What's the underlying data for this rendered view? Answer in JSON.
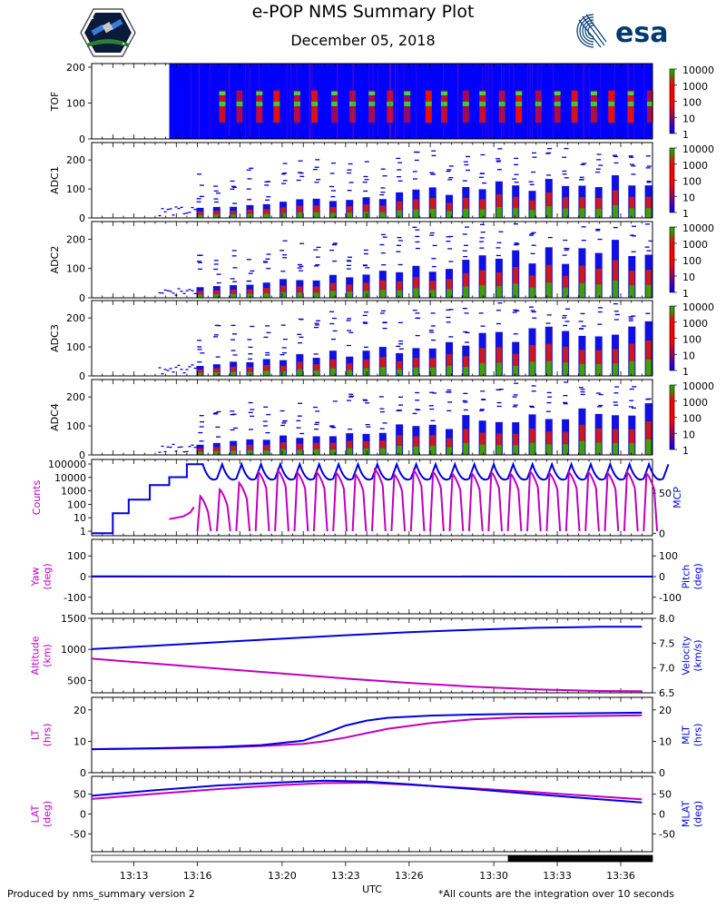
{
  "header": {
    "title": "e-POP NMS Summary Plot",
    "date": "December 05, 2018"
  },
  "logos": {
    "mission": "satellite-mission-badge",
    "esa": "esa"
  },
  "footer": {
    "left": "Produced by nms_summary version 2",
    "right": "*All counts are the integration over 10 seconds"
  },
  "colors": {
    "magenta": "#c000c0",
    "blue": "#0000e0",
    "colorbar": [
      "#0000ff",
      "#ff0000",
      "#00c000"
    ]
  },
  "chart_data": [
    {
      "type": "heatmap",
      "ylabel": "TOF",
      "ylim": [
        0,
        210
      ],
      "yticks": [
        0,
        100,
        200
      ],
      "colorbar_ticks": [
        "10000",
        "1000",
        "100",
        "10",
        "1"
      ],
      "data_start_time": "13:14:40",
      "peak_bins": [
        60,
        100,
        130
      ]
    },
    {
      "type": "heatmap",
      "ylabel": "ADC1",
      "ylim": [
        0,
        260
      ],
      "yticks": [
        0,
        100,
        200
      ],
      "colorbar_ticks": [
        "10000",
        "1000",
        "100",
        "10",
        "1"
      ]
    },
    {
      "type": "heatmap",
      "ylabel": "ADC2",
      "ylim": [
        0,
        260
      ],
      "yticks": [
        0,
        100,
        200
      ],
      "colorbar_ticks": [
        "10000",
        "1000",
        "100",
        "10",
        "1"
      ]
    },
    {
      "type": "heatmap",
      "ylabel": "ADC3",
      "ylim": [
        0,
        260
      ],
      "yticks": [
        0,
        100,
        200
      ],
      "colorbar_ticks": [
        "10000",
        "1000",
        "100",
        "10",
        "1"
      ]
    },
    {
      "type": "heatmap",
      "ylabel": "ADC4",
      "ylim": [
        0,
        260
      ],
      "yticks": [
        0,
        100,
        200
      ],
      "colorbar_ticks": [
        "10000",
        "1000",
        "100",
        "10",
        "1"
      ]
    },
    {
      "type": "line",
      "ylabel_left": "Counts",
      "ylabel_right": "MCP",
      "left_yticks": [
        "100000",
        "10000",
        "1000",
        "100",
        "10",
        "1"
      ],
      "right_yticks": [
        "50",
        "0"
      ],
      "right_ylim": [
        -3,
        92
      ],
      "series": [
        {
          "axis": "left",
          "color": "magenta",
          "description": "counts"
        },
        {
          "axis": "right",
          "color": "blue",
          "description": "mcp",
          "steps": [
            [
              "13:11:00",
              0
            ],
            [
              "13:12:00",
              0
            ],
            [
              "13:12:00",
              25
            ],
            [
              "13:12:45",
              25
            ],
            [
              "13:12:45",
              42
            ],
            [
              "13:13:45",
              42
            ],
            [
              "13:13:45",
              60
            ],
            [
              "13:14:40",
              60
            ],
            [
              "13:14:40",
              70
            ],
            [
              "13:15:30",
              70
            ],
            [
              "13:15:30",
              86
            ],
            [
              "13:16:15",
              86
            ]
          ]
        }
      ]
    },
    {
      "type": "line",
      "ylabel_left": "Yaw\n(deg)",
      "ylabel_right": "Pitch\n(deg)",
      "ylim": [
        -180,
        180
      ],
      "yticks": [
        100,
        0,
        -100
      ],
      "series": [
        {
          "name": "Yaw",
          "color": "magenta",
          "values": [
            0,
            0
          ]
        },
        {
          "name": "Pitch",
          "color": "blue",
          "values": [
            1,
            0
          ]
        }
      ]
    },
    {
      "type": "line",
      "ylabel_left": "Altitude\n(km)",
      "ylabel_right": "Velocity\n(km/s)",
      "left_ylim": [
        300,
        1500
      ],
      "left_yticks": [
        1500,
        1000,
        500
      ],
      "right_ylim": [
        6.5,
        8.0
      ],
      "right_yticks": [
        "8.0",
        "7.5",
        "7.0",
        "6.5"
      ],
      "x": [
        "13:11",
        "13:14",
        "13:17",
        "13:20",
        "13:23",
        "13:26",
        "13:29",
        "13:32",
        "13:35",
        "13:37"
      ],
      "series": [
        {
          "name": "Altitude",
          "color": "magenta",
          "values": [
            850,
            770,
            690,
            610,
            530,
            460,
            400,
            355,
            330,
            325
          ]
        },
        {
          "name": "Velocity",
          "color": "blue",
          "values": [
            7.38,
            7.45,
            7.52,
            7.59,
            7.66,
            7.72,
            7.77,
            7.81,
            7.83,
            7.83
          ]
        }
      ]
    },
    {
      "type": "line",
      "ylabel_left": "LT\n(hrs)",
      "ylabel_right": "MLT\n(hrs)",
      "ylim": [
        0,
        24
      ],
      "yticks": [
        20,
        10,
        0
      ],
      "x": [
        "13:11",
        "13:14",
        "13:17",
        "13:19",
        "13:21",
        "13:22",
        "13:23",
        "13:24",
        "13:25",
        "13:27",
        "13:29",
        "13:31",
        "13:34",
        "13:37"
      ],
      "series": [
        {
          "name": "LT",
          "color": "magenta",
          "values": [
            7.5,
            7.7,
            8.0,
            8.5,
            9.2,
            10.0,
            11.2,
            12.6,
            14.0,
            15.8,
            17.0,
            17.6,
            18.0,
            18.3
          ]
        },
        {
          "name": "MLT",
          "color": "blue",
          "values": [
            7.5,
            7.8,
            8.2,
            8.8,
            10.2,
            12.5,
            15.0,
            16.6,
            17.5,
            18.2,
            18.5,
            18.7,
            18.9,
            19.1
          ]
        }
      ]
    },
    {
      "type": "line",
      "ylabel_left": "LAT\n(deg)",
      "ylabel_right": "MLAT\n(deg)",
      "ylim": [
        -95,
        95
      ],
      "yticks": [
        50,
        0,
        -50
      ],
      "x": [
        "13:11",
        "13:14",
        "13:17",
        "13:20",
        "13:22",
        "13:24",
        "13:26",
        "13:29",
        "13:32",
        "13:35",
        "13:37"
      ],
      "series": [
        {
          "name": "LAT",
          "color": "magenta",
          "values": [
            38,
            51,
            63,
            73,
            78,
            79,
            74,
            65,
            55,
            44,
            37
          ]
        },
        {
          "name": "MLAT",
          "color": "blue",
          "values": [
            46,
            60,
            72,
            80,
            84,
            82,
            75,
            63,
            50,
            37,
            29
          ]
        }
      ]
    }
  ],
  "time_axis": {
    "label": "UTC",
    "start": "13:11:00",
    "end": "13:37:30",
    "ticks": [
      "13:13",
      "13:16",
      "13:20",
      "13:23",
      "13:26",
      "13:30",
      "13:33",
      "13:36"
    ],
    "eclipse_start": "13:30:40"
  }
}
